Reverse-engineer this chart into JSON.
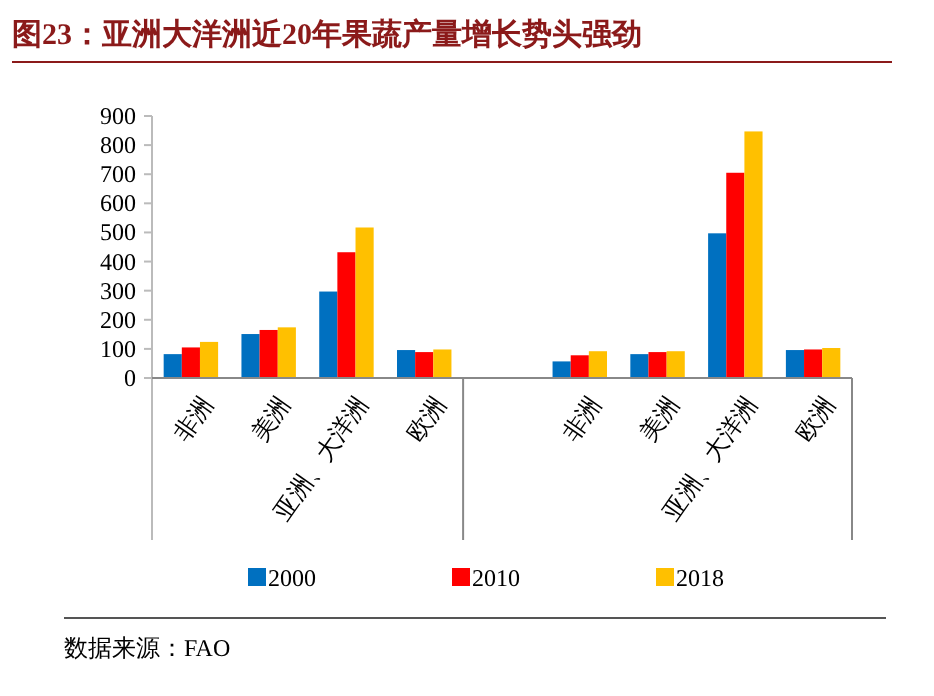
{
  "chart_data": {
    "type": "bar",
    "title": "图23：亚洲大洋洲近20年果蔬产量增长势头强劲",
    "categories": [
      "非洲",
      "美洲",
      "亚洲、大洋洲",
      "欧洲",
      null,
      "非洲",
      "美洲",
      "亚洲、大洋洲",
      "欧洲"
    ],
    "series": [
      {
        "name": "2000",
        "color": "#0070c0",
        "values": [
          82,
          151,
          297,
          96,
          null,
          57,
          82,
          497,
          96
        ]
      },
      {
        "name": "2010",
        "color": "#ff0000",
        "values": [
          105,
          165,
          432,
          89,
          null,
          78,
          89,
          705,
          98
        ]
      },
      {
        "name": "2018",
        "color": "#ffc000",
        "values": [
          124,
          174,
          517,
          98,
          null,
          92,
          92,
          847,
          103
        ]
      }
    ],
    "ylim": [
      0,
      900
    ],
    "yticks": [
      0,
      100,
      200,
      300,
      400,
      500,
      600,
      700,
      800,
      900
    ],
    "grid": false,
    "legend": "bottom",
    "annotations": [
      "数据来源：FAO"
    ]
  }
}
